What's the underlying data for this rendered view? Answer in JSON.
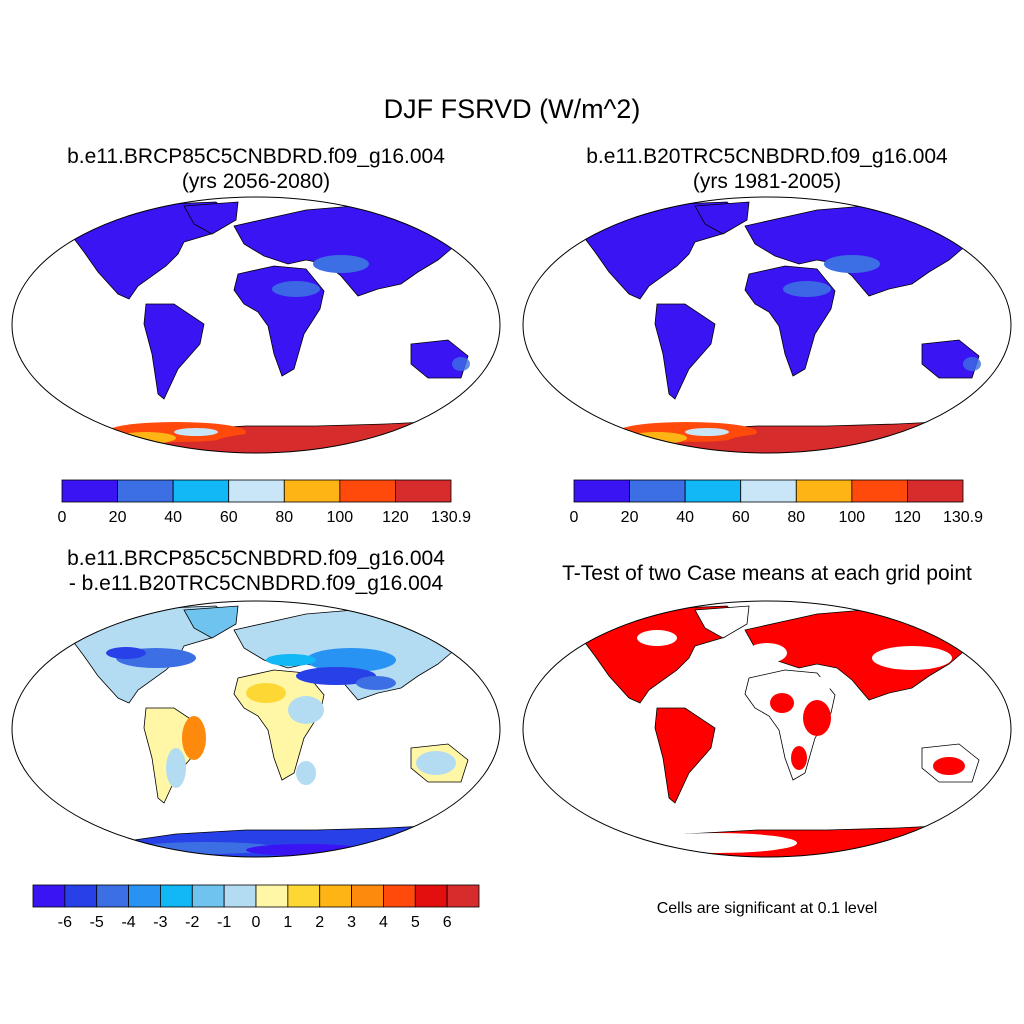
{
  "figure": {
    "title": "DJF FSRVD (W/m^2)"
  },
  "panels": [
    {
      "id": "case1",
      "title_line1": "b.e11.BRCP85C5CNBDRD.f09_g16.004",
      "title_line2": "(yrs 2056-2080)",
      "colorbar": {
        "colors": [
          "#3a14f2",
          "#3c6fe3",
          "#12b8f6",
          "#c8e6f8",
          "#fdb414",
          "#ff4a0c",
          "#d72c2c"
        ],
        "tick_labels": [
          "0",
          "20",
          "40",
          "60",
          "80",
          "100",
          "120",
          "130.9"
        ]
      }
    },
    {
      "id": "case2",
      "title_line1": "b.e11.B20TRC5CNBDRD.f09_g16.004",
      "title_line2": "(yrs 1981-2005)",
      "colorbar": {
        "colors": [
          "#3a14f2",
          "#3c6fe3",
          "#12b8f6",
          "#c8e6f8",
          "#fdb414",
          "#ff4a0c",
          "#d72c2c"
        ],
        "tick_labels": [
          "0",
          "20",
          "40",
          "60",
          "80",
          "100",
          "120",
          "130.9"
        ]
      }
    },
    {
      "id": "difference",
      "title_line1": "b.e11.BRCP85C5CNBDRD.f09_g16.004",
      "title_line2": "- b.e11.B20TRC5CNBDRD.f09_g16.004",
      "colorbar": {
        "colors": [
          "#3a14f2",
          "#2740e8",
          "#3c6fe3",
          "#2893f2",
          "#12b8f6",
          "#6ec3ef",
          "#b3dbf2",
          "#fff7a6",
          "#fdd835",
          "#fdb414",
          "#fd8a0c",
          "#ff4a0c",
          "#e30f0f",
          "#d72c2c"
        ],
        "tick_labels": [
          "-6",
          "-5",
          "-4",
          "-3",
          "-2",
          "-1",
          "0",
          "1",
          "2",
          "3",
          "4",
          "5",
          "6"
        ]
      }
    },
    {
      "id": "ttest",
      "title_line1": "T-Test of two Case means at each grid point",
      "note": "Cells are significant at 0.1 level",
      "significant_color": "#ff0000"
    }
  ]
}
